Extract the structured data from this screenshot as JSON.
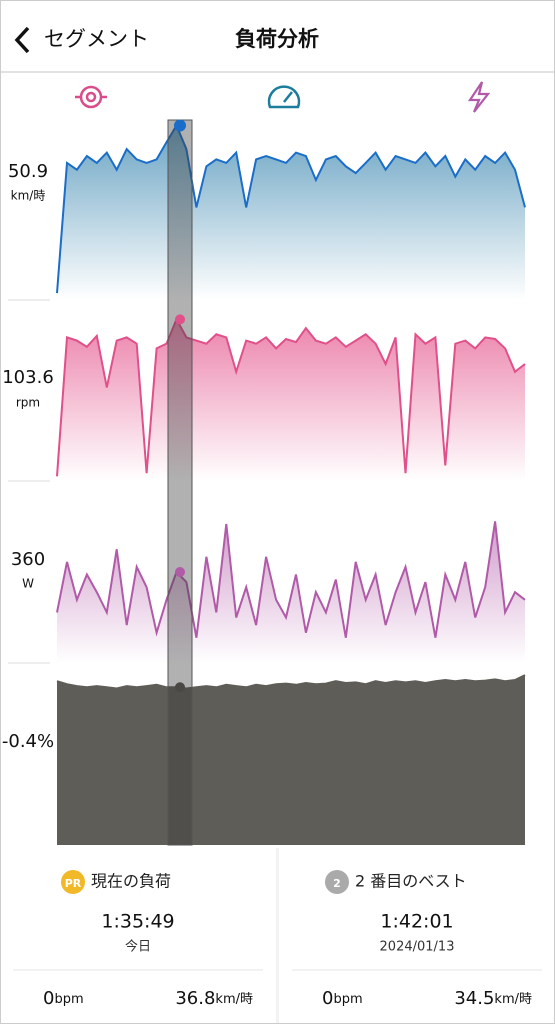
{
  "header": {
    "back_label": "セグメント",
    "title": "負荷分析"
  },
  "chart_data": [
    {
      "type": "area",
      "current": 50.9,
      "unit": "km/時",
      "color": "#1a6dc8",
      "ylim": [
        0,
        52.5
      ],
      "values": [
        2,
        40,
        38,
        42,
        40,
        43,
        38,
        44,
        41,
        40,
        41,
        46,
        50.9,
        44,
        27,
        39,
        41,
        40,
        43,
        27,
        41,
        42,
        41,
        40,
        43,
        42,
        35,
        41,
        42,
        39,
        37,
        40,
        43,
        38,
        42,
        41,
        40,
        43,
        39,
        42,
        36,
        41,
        38,
        42,
        40,
        43,
        38,
        27
      ]
    },
    {
      "type": "area",
      "current": 103.6,
      "unit": "rpm",
      "color": "#e0508a",
      "ylim": [
        0,
        116
      ],
      "values": [
        3,
        92,
        90,
        86,
        93,
        60,
        90,
        92,
        88,
        5,
        85,
        88,
        103.6,
        92,
        90,
        88,
        94,
        92,
        70,
        90,
        88,
        92,
        85,
        91,
        89,
        98,
        90,
        88,
        92,
        86,
        90,
        94,
        88,
        75,
        92,
        5,
        94,
        88,
        92,
        10,
        88,
        90,
        85,
        92,
        91,
        85,
        70,
        75
      ]
    },
    {
      "type": "area",
      "current": 360,
      "unit": "W",
      "color": "#b05aa8",
      "ylim": [
        0,
        720
      ],
      "values": [
        200,
        400,
        250,
        350,
        280,
        200,
        450,
        150,
        380,
        300,
        120,
        250,
        360,
        320,
        100,
        420,
        200,
        550,
        180,
        300,
        150,
        420,
        250,
        180,
        350,
        120,
        280,
        200,
        330,
        100,
        400,
        250,
        350,
        150,
        280,
        380,
        200,
        320,
        100,
        350,
        250,
        400,
        180,
        300,
        560,
        200,
        280,
        250
      ]
    },
    {
      "type": "area",
      "current": -0.4,
      "unit": "%",
      "color": "#5f5d58",
      "ylim": [
        -3,
        0
      ],
      "values": [
        -0.3,
        -0.35,
        -0.38,
        -0.4,
        -0.38,
        -0.4,
        -0.42,
        -0.38,
        -0.4,
        -0.38,
        -0.36,
        -0.4,
        -0.4,
        -0.42,
        -0.4,
        -0.38,
        -0.4,
        -0.36,
        -0.38,
        -0.4,
        -0.36,
        -0.38,
        -0.35,
        -0.34,
        -0.36,
        -0.33,
        -0.35,
        -0.34,
        -0.3,
        -0.33,
        -0.32,
        -0.35,
        -0.3,
        -0.33,
        -0.3,
        -0.32,
        -0.3,
        -0.33,
        -0.3,
        -0.28,
        -0.3,
        -0.28,
        -0.3,
        -0.29,
        -0.27,
        -0.3,
        -0.28,
        -0.2
      ]
    }
  ],
  "cards": [
    {
      "badge": "PR",
      "title": "現在の負荷",
      "time": "1:35:49",
      "date": "今日",
      "hr": "0",
      "hr_unit": "bpm",
      "speed": "36.8",
      "speed_unit": "km/時"
    },
    {
      "badge": "2",
      "title": "2 番目のベスト",
      "time": "1:42:01",
      "date": "2024/01/13",
      "hr": "0",
      "hr_unit": "bpm",
      "speed": "34.5",
      "speed_unit": "km/時"
    }
  ]
}
